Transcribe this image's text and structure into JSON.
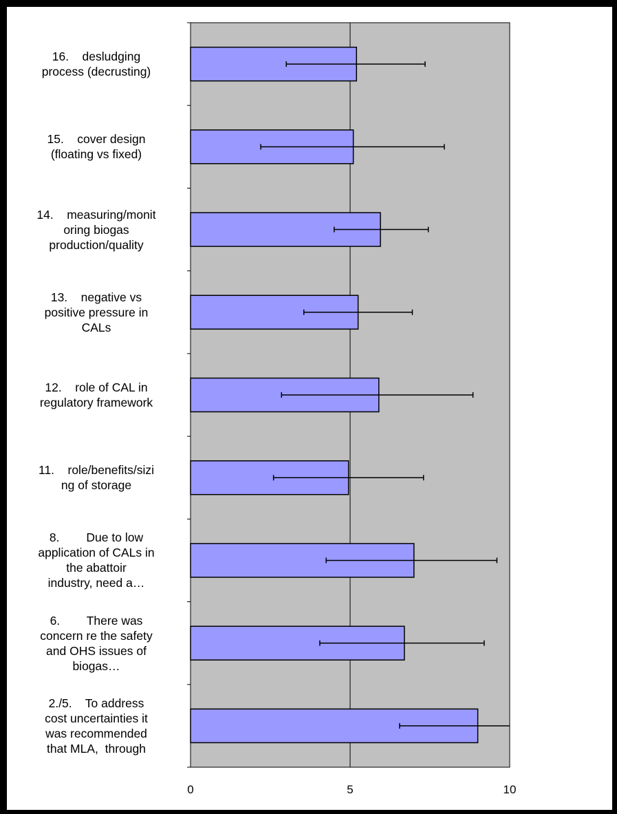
{
  "chart_data": {
    "type": "bar",
    "orientation": "horizontal",
    "categories": [
      "16.    desludging\nprocess (decrusting)",
      "15.    cover design\n(floating vs fixed)",
      "14.    measuring/monit\noring biogas\nproduction/quality",
      "13.    negative vs\npositive pressure in\nCALs",
      "12.    role of CAL in\nregulatory framework",
      "11.    role/benefits/sizi\nng of storage",
      "8.        Due to low\napplication of CALs in\nthe abattoir\nindustry, need a…",
      "6.        There was\nconcern re the safety\nand OHS issues of\nbiogas…",
      "2./5.    To address\ncost uncertainties it\nwas recommended\nthat MLA,  through"
    ],
    "values": [
      5.2,
      5.1,
      5.95,
      5.25,
      5.9,
      4.95,
      7.0,
      6.7,
      9.0
    ],
    "error_low": [
      3.0,
      2.2,
      4.5,
      3.55,
      2.85,
      2.6,
      4.25,
      4.05,
      6.55
    ],
    "error_high": [
      7.35,
      7.95,
      7.45,
      6.95,
      8.85,
      7.3,
      9.6,
      9.2,
      10.0
    ],
    "xlim": [
      0,
      10
    ],
    "xticks": [
      "0",
      "5",
      "10"
    ],
    "xlabel": "",
    "ylabel": "",
    "title": "",
    "grid": "vertical line at 5",
    "colors": {
      "bar_fill": "#9999ff",
      "bar_stroke": "#000000",
      "plot_background": "#c0c0c0",
      "error_bar": "#000000"
    }
  }
}
